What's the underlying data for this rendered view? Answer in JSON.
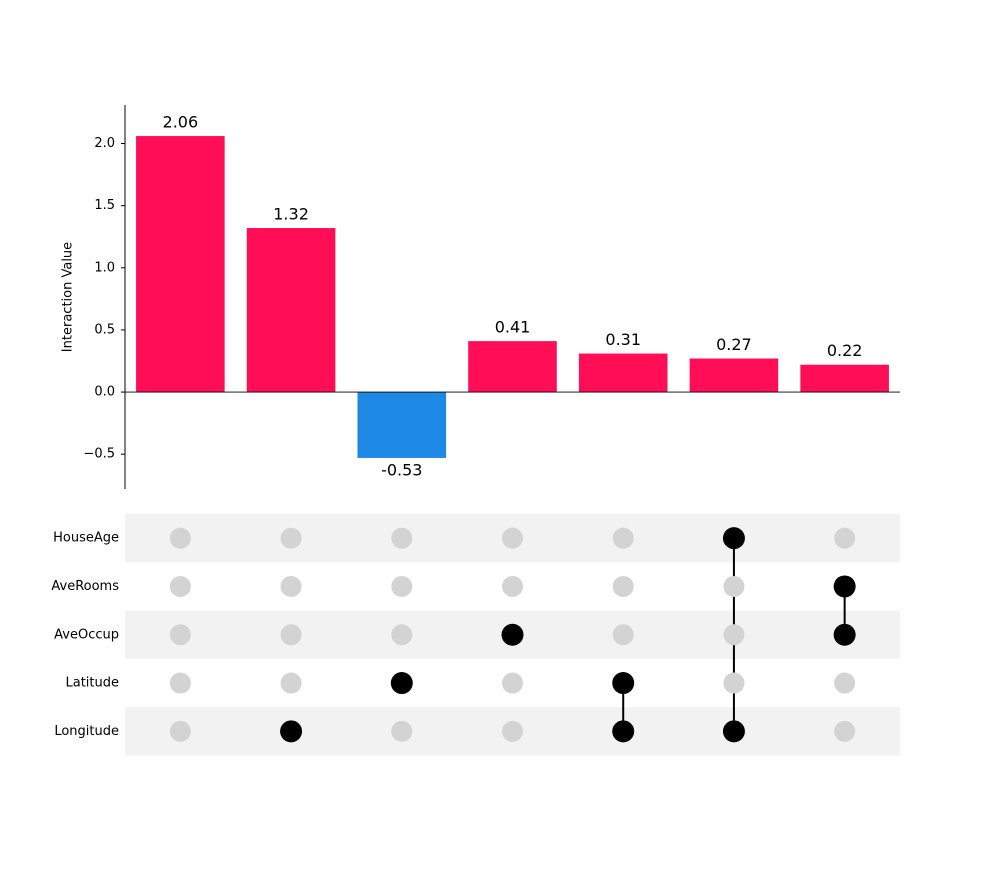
{
  "chart_data": {
    "type": "upset",
    "y_label": "Interaction Value",
    "values": [
      2.06,
      1.32,
      -0.53,
      0.41,
      0.31,
      0.27,
      0.22
    ],
    "positive_color": "#ff0d57",
    "negative_color": "#1e88e5",
    "ylim": [
      -0.78,
      2.31
    ],
    "yticks": [
      {
        "value": -0.5,
        "label": "−0.5"
      },
      {
        "value": 0,
        "label": "0.0"
      },
      {
        "value": 0.5,
        "label": "0.5"
      },
      {
        "value": 1,
        "label": "1.0"
      },
      {
        "value": 1.5,
        "label": "1.5"
      },
      {
        "value": 2,
        "label": "2.0"
      }
    ],
    "features": [
      "HouseAge",
      "AveRooms",
      "AveOccup",
      "Latitude",
      "Longitude"
    ],
    "membership": [
      [
        0,
        0,
        0,
        0,
        0,
        1,
        0
      ],
      [
        0,
        0,
        0,
        0,
        0,
        0,
        1
      ],
      [
        0,
        0,
        0,
        1,
        0,
        0,
        1
      ],
      [
        0,
        0,
        1,
        0,
        1,
        0,
        0
      ],
      [
        0,
        1,
        0,
        0,
        1,
        1,
        0
      ]
    ]
  }
}
